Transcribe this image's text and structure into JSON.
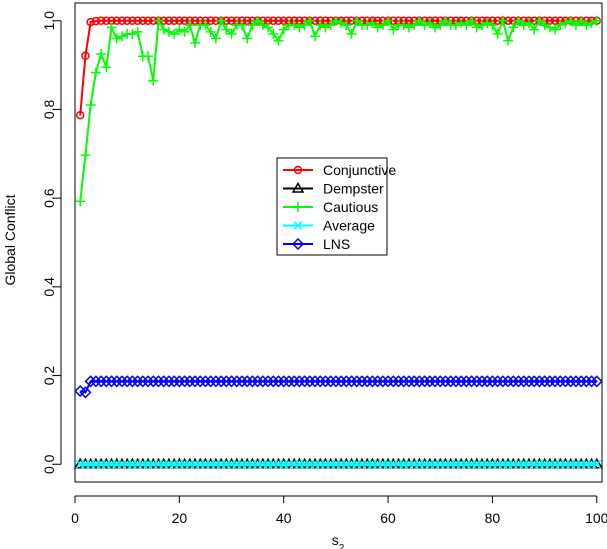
{
  "chart_data": {
    "type": "line",
    "title": "",
    "xlabel": "s",
    "xlabel_subscript": "2",
    "ylabel": "Global Conflict",
    "xlim": [
      0,
      101
    ],
    "ylim": [
      0,
      1
    ],
    "x_ticks": [
      "0",
      "20",
      "40",
      "60",
      "80",
      "100"
    ],
    "y_ticks": [
      "0.0",
      "0.2",
      "0.4",
      "0.6",
      "0.8",
      "1.0"
    ],
    "grid": false,
    "legend_position": "center",
    "x_start": 1,
    "x_end": 100,
    "series": [
      {
        "name": "Conjunctive",
        "color": "#ff0000",
        "marker": "circle",
        "head_values": [
          0.787,
          0.921,
          0.997,
          0.999
        ],
        "tail_value": 1.0
      },
      {
        "name": "Dempster",
        "color": "#000000",
        "marker": "triangle",
        "head_values": [],
        "tail_value": 0.0
      },
      {
        "name": "Cautious",
        "color": "#00ff00",
        "marker": "plus",
        "head_values": [
          0.593,
          0.697,
          0.81,
          0.883,
          0.925,
          0.895,
          0.985,
          0.96,
          0.965,
          0.97,
          0.97,
          0.975,
          0.92,
          0.92,
          0.865,
          1.0,
          0.98,
          0.975,
          0.97,
          0.98,
          0.975,
          0.99,
          0.95,
          0.99,
          0.99,
          0.975,
          0.96,
          1.0,
          0.98,
          0.97,
          0.99,
          0.99,
          0.96,
          0.99,
          1.0,
          0.99,
          0.985,
          0.97,
          0.955,
          0.98,
          0.99,
          0.99,
          0.985,
          0.99,
          1.0,
          0.965,
          0.99,
          0.985,
          0.99,
          1.0,
          0.995,
          0.99,
          0.97,
          1.0,
          0.99,
          0.99,
          0.995,
          0.985,
          0.99,
          1.0,
          0.98,
          0.99,
          0.99,
          0.985,
          0.99,
          1.0,
          0.99,
          0.995,
          0.985,
          0.99,
          1.0,
          0.99,
          0.99,
          0.995,
          0.99,
          1.0,
          0.985,
          0.99,
          0.995,
          0.99,
          0.97,
          1.0,
          0.955,
          0.985,
          1.0,
          0.99,
          0.995,
          0.98,
          1.0,
          0.99,
          0.985,
          0.98,
          0.99,
          0.995,
          1.0,
          0.99,
          1.0,
          0.99,
          0.995,
          1.0
        ],
        "tail_value": 1.0
      },
      {
        "name": "Average",
        "color": "#00ffff",
        "marker": "x",
        "head_values": [],
        "tail_value": 0.0
      },
      {
        "name": "LNS",
        "color": "#0000ff",
        "marker": "diamond",
        "head_values": [
          0.165,
          0.162
        ],
        "tail_value": 0.187
      }
    ]
  }
}
